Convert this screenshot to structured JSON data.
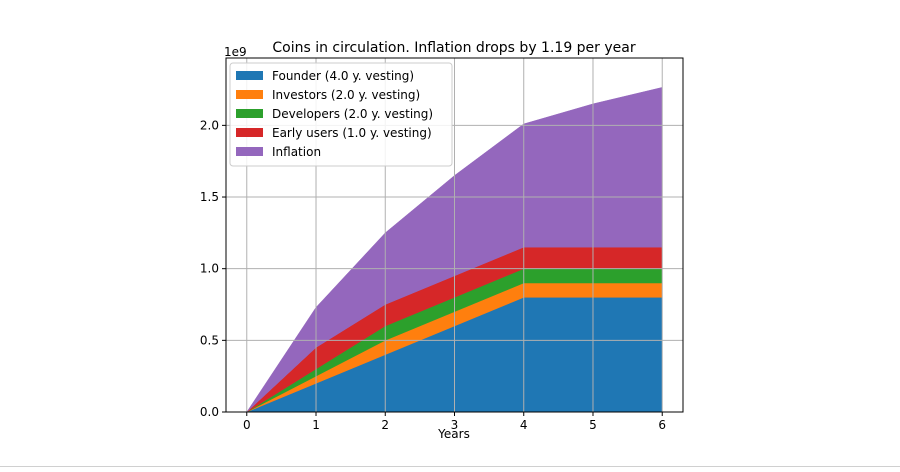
{
  "chart_data": {
    "type": "area",
    "stacked": true,
    "title": "Coins in circulation. Inflation drops by 1.19 per year",
    "xlabel": "Years",
    "ylabel": "",
    "y_offset_label": "1e9",
    "x": [
      0,
      1,
      2,
      3,
      4,
      5,
      6
    ],
    "xlim": [
      -0.3,
      6.3
    ],
    "ylim": [
      0,
      2.47
    ],
    "y_scale_multiplier": 1000000000.0,
    "xticks": [
      "0",
      "1",
      "2",
      "3",
      "4",
      "5",
      "6"
    ],
    "yticks": [
      0.0,
      0.5,
      1.0,
      1.5,
      2.0
    ],
    "ytick_labels": [
      "0.0",
      "0.5",
      "1.0",
      "1.5",
      "2.0"
    ],
    "grid": true,
    "legend_position": "top-left",
    "series": [
      {
        "name": "Founder (4.0 y. vesting)",
        "color": "#1f77b4",
        "values": [
          0,
          0.2,
          0.4,
          0.6,
          0.8,
          0.8,
          0.8
        ]
      },
      {
        "name": "Investors (2.0 y. vesting)",
        "color": "#ff7f0e",
        "values": [
          0,
          0.05,
          0.1,
          0.1,
          0.1,
          0.1,
          0.1
        ]
      },
      {
        "name": "Developers (2.0 y. vesting)",
        "color": "#2ca02c",
        "values": [
          0,
          0.05,
          0.1,
          0.1,
          0.1,
          0.1,
          0.1
        ]
      },
      {
        "name": "Early users (1.0 y. vesting)",
        "color": "#d62728",
        "values": [
          0,
          0.15,
          0.15,
          0.15,
          0.15,
          0.15,
          0.15
        ]
      },
      {
        "name": "Inflation",
        "color": "#9467bd",
        "values": [
          0,
          0.28,
          0.5,
          0.7,
          0.86,
          1.0,
          1.115
        ]
      }
    ]
  }
}
